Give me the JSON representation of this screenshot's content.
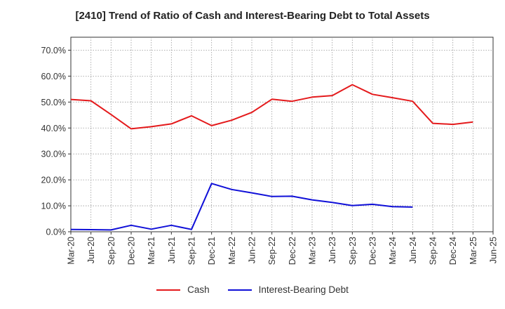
{
  "chart_data": {
    "type": "line",
    "title": "[2410]  Trend of Ratio of Cash and Interest-Bearing Debt to Total Assets",
    "xlabel": "",
    "ylabel": "",
    "ylim": [
      0,
      0.75
    ],
    "y_ticks": [
      "0.0%",
      "10.0%",
      "20.0%",
      "30.0%",
      "40.0%",
      "50.0%",
      "60.0%",
      "70.0%"
    ],
    "y_tick_values": [
      0,
      0.1,
      0.2,
      0.3,
      0.4,
      0.5,
      0.6,
      0.7
    ],
    "categories": [
      "Mar-20",
      "Jun-20",
      "Sep-20",
      "Dec-20",
      "Mar-21",
      "Jun-21",
      "Sep-21",
      "Dec-21",
      "Mar-22",
      "Jun-22",
      "Sep-22",
      "Dec-22",
      "Mar-23",
      "Jun-23",
      "Sep-23",
      "Dec-23",
      "Mar-24",
      "Jun-24",
      "Sep-24",
      "Dec-24",
      "Mar-25",
      "Jun-25"
    ],
    "grid": true,
    "legend_position": "bottom",
    "series": [
      {
        "name": "Cash",
        "color": "#e41a1c",
        "values": [
          0.51,
          0.505,
          0.452,
          0.397,
          0.405,
          0.416,
          0.447,
          0.409,
          0.43,
          0.46,
          0.511,
          0.503,
          0.519,
          0.525,
          0.567,
          0.53,
          0.517,
          0.503,
          0.418,
          0.414,
          0.423,
          null
        ]
      },
      {
        "name": "Interest-Bearing Debt",
        "color": "#1010d8",
        "values": [
          0.009,
          0.008,
          0.007,
          0.025,
          0.01,
          0.025,
          0.009,
          0.186,
          0.163,
          0.15,
          0.136,
          0.137,
          0.123,
          0.113,
          0.101,
          0.106,
          0.097,
          0.095,
          null,
          null,
          null,
          null
        ]
      }
    ]
  }
}
